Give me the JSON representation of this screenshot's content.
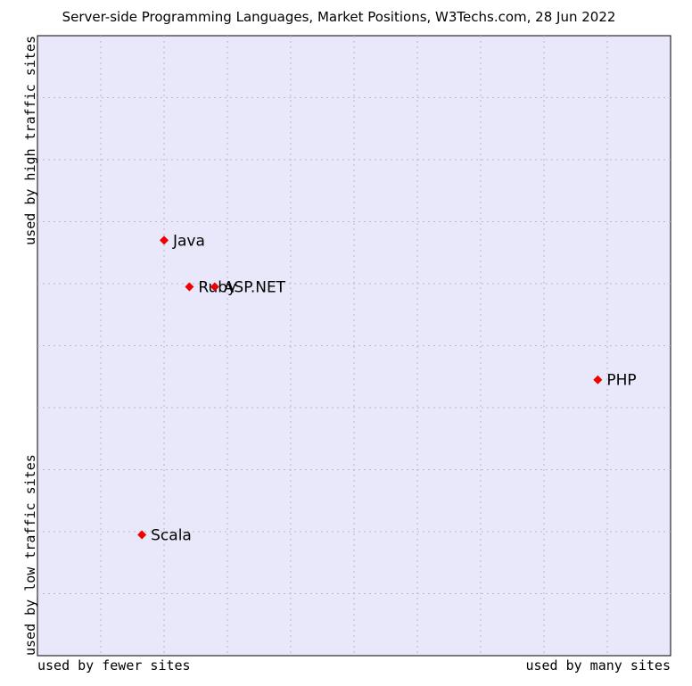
{
  "chart_data": {
    "type": "scatter",
    "title": "Server-side Programming Languages, Market Positions, W3Techs.com, 28 Jun 2022",
    "xlabel_left": "used by fewer sites",
    "xlabel_right": "used by many sites",
    "ylabel_top": "used by high traffic sites",
    "ylabel_bottom": "used by low traffic sites",
    "xlim": [
      0,
      10
    ],
    "ylim": [
      0,
      10
    ],
    "grid": true,
    "colors": {
      "plot_background": "#e8e8fa",
      "point": "#ee0000",
      "grid": "#b8b8c8"
    },
    "points": [
      {
        "label": "Java",
        "x": 2.0,
        "y": 6.7
      },
      {
        "label": "Ruby",
        "x": 2.4,
        "y": 5.95
      },
      {
        "label": "ASP.NET",
        "x": 2.8,
        "y": 5.95
      },
      {
        "label": "PHP",
        "x": 8.85,
        "y": 4.45
      },
      {
        "label": "Scala",
        "x": 1.65,
        "y": 1.95
      }
    ]
  }
}
